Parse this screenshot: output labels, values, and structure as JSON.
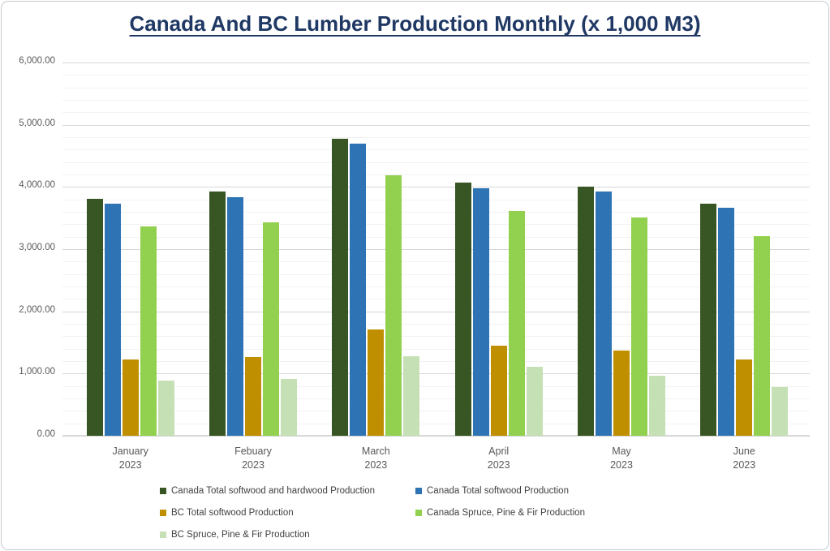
{
  "window": {
    "title": "Canada And BC Lumber Production Monthly (x 1,000 M3)"
  },
  "chart_data": {
    "type": "bar",
    "title": "Canada And BC Lumber Production Monthly (x 1,000 M3)",
    "categories": [
      "January 2023",
      "Febuary 2023",
      "March 2023",
      "April 2023",
      "May 2023",
      "June 2023"
    ],
    "series": [
      {
        "name": "Canada Total softwood and hardwood Production",
        "color": "#375623",
        "values": [
          3810,
          3930,
          4780,
          4070,
          4000,
          3730
        ]
      },
      {
        "name": "Canada Total softwood Production",
        "color": "#2E74B5",
        "values": [
          3730,
          3840,
          4690,
          3980,
          3930,
          3670
        ]
      },
      {
        "name": "BC Total softwood Production",
        "color": "#BF8F00",
        "values": [
          1230,
          1270,
          1710,
          1450,
          1370,
          1230
        ]
      },
      {
        "name": "Canada Spruce, Pine & Fir Production",
        "color": "#92D050",
        "values": [
          3360,
          3430,
          4190,
          3620,
          3510,
          3210
        ]
      },
      {
        "name": "BC Spruce, Pine & Fir Production",
        "color": "#C5E0B4",
        "values": [
          890,
          920,
          1280,
          1110,
          960,
          780
        ]
      }
    ],
    "xlabel": "",
    "ylabel": "",
    "ylim": [
      0,
      6000
    ],
    "y_major_step": 1000,
    "y_minor_step": 200,
    "y_tick_labels": [
      "6,000.00",
      "5,000.00",
      "4,000.00",
      "3,000.00",
      "2,000.00",
      "1,000.00",
      "0.00"
    ],
    "grid": "horizontal major and minor gridlines",
    "legend_position": "bottom",
    "legend_rows": [
      [
        0,
        1
      ],
      [
        2,
        3
      ],
      [
        4
      ]
    ]
  },
  "colors": {
    "title_text": "#1F3864",
    "axis_text": "#595959",
    "legend_text": "#404040",
    "major_gridline": "#D6D6D6",
    "minor_gridline": "#F2F2F2",
    "axis_line": "#D9D9D9",
    "frame_border": "#C7CCD1",
    "background": "#FFFFFF"
  }
}
